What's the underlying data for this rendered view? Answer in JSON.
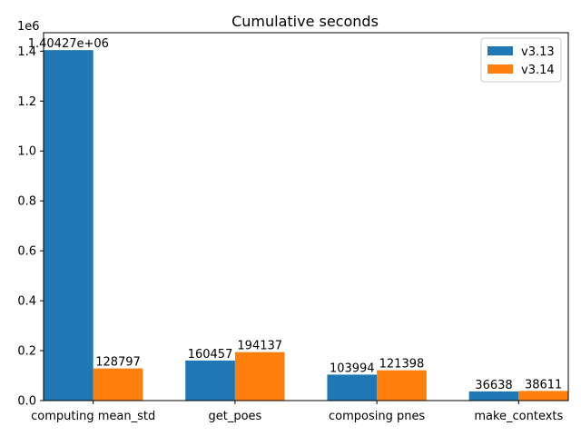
{
  "chart_data": {
    "type": "bar",
    "title": "Cumulative seconds",
    "xlabel": "",
    "ylabel": "",
    "y_offset_label": "1e6",
    "categories": [
      "computing mean_std",
      "get_poes",
      "composing pnes",
      "make_contexts"
    ],
    "series": [
      {
        "name": "v3.13",
        "color": "#1f77b4",
        "values": [
          1404270,
          160457,
          103994,
          36638
        ],
        "labels": [
          "1.40427e+06",
          "160457",
          "103994",
          "36638"
        ]
      },
      {
        "name": "v3.14",
        "color": "#ff7f0e",
        "values": [
          128797,
          194137,
          121398,
          38611
        ],
        "labels": [
          "128797",
          "194137",
          "121398",
          "38611"
        ]
      }
    ],
    "ylim": [
      0,
      1474000
    ],
    "yticks": [
      0,
      200000,
      400000,
      600000,
      800000,
      1000000,
      1200000,
      1400000
    ],
    "ytick_labels": [
      "0.0",
      "0.2",
      "0.4",
      "0.6",
      "0.8",
      "1.0",
      "1.2",
      "1.4"
    ],
    "legend_position": "upper right",
    "grid": false
  }
}
